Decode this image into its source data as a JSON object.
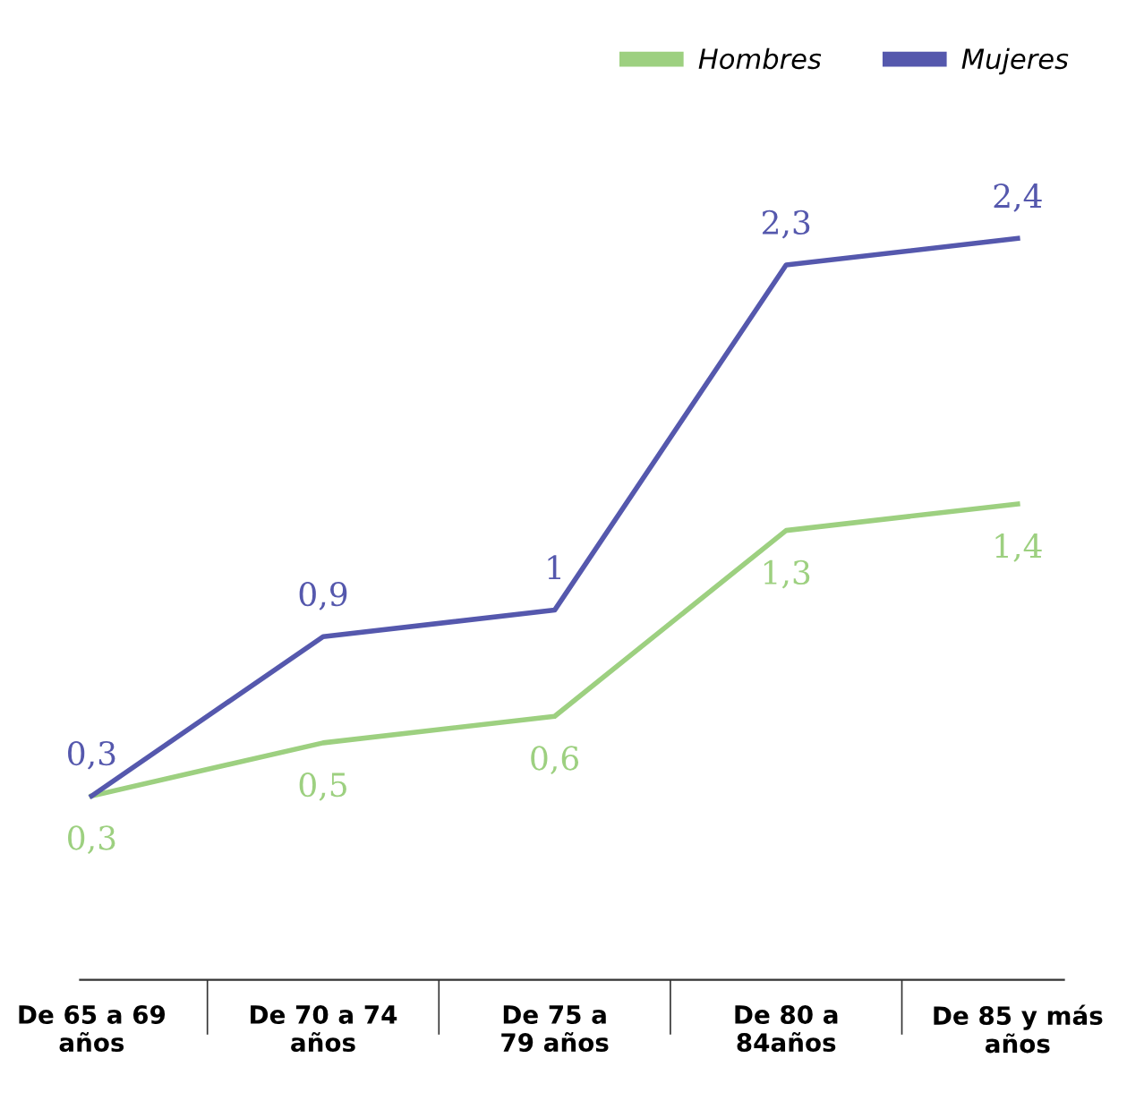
{
  "chart_data": {
    "type": "line",
    "categories": [
      "De 65 a 69\naños",
      "De 70 a 74\naños",
      "De 75 a\n79 años",
      "De 80 a\n84años",
      "De 85 y más\naños"
    ],
    "series": [
      {
        "name": "Hombres",
        "color": "#9dd080",
        "values": [
          0.3,
          0.5,
          0.6,
          1.3,
          1.4
        ],
        "value_labels": [
          "0,3",
          "0,5",
          "0,6",
          "1,3",
          "1,4"
        ]
      },
      {
        "name": "Mujeres",
        "color": "#5558ad",
        "values": [
          0.3,
          0.9,
          1,
          2.3,
          2.4
        ],
        "value_labels": [
          "0,3",
          "0,9",
          "1",
          "2,3",
          "2,4"
        ]
      }
    ],
    "legend": "top right",
    "grid": false,
    "marker": "none",
    "line_style": "solid"
  }
}
